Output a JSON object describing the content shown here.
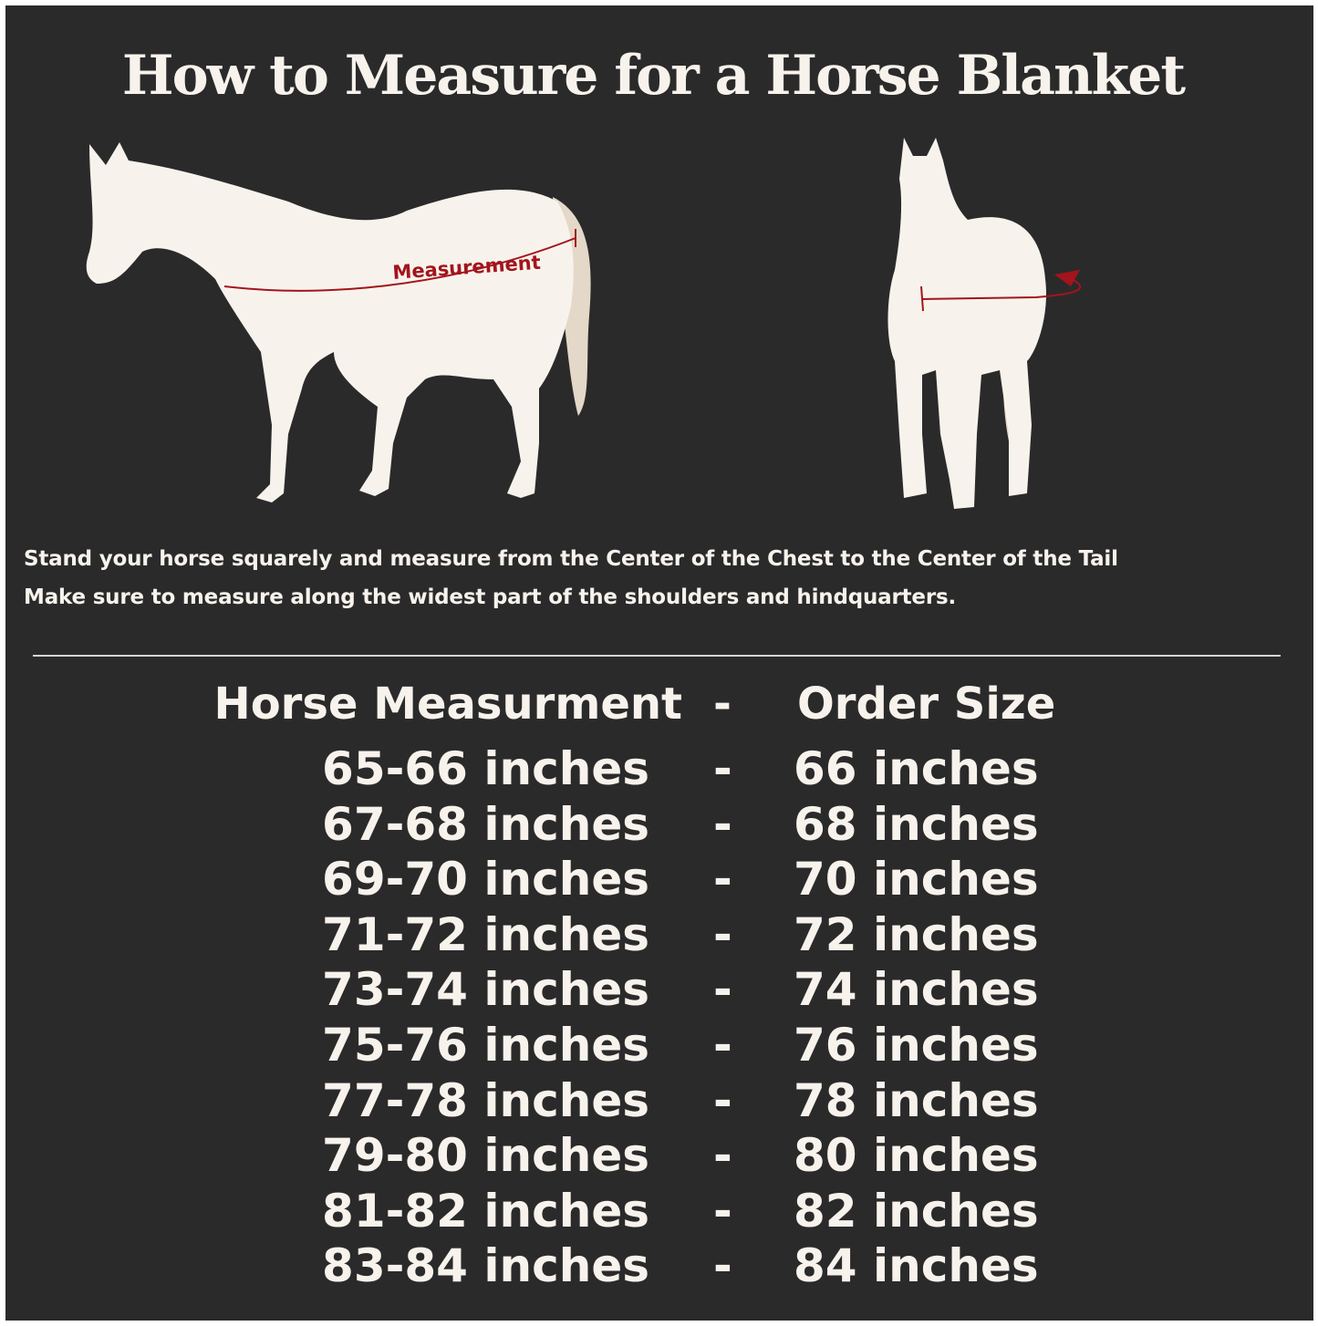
{
  "title": "How to Measure for a Horse Blanket",
  "diagram": {
    "side_label": "Measurement",
    "accent_color": "#a3141c",
    "horse_color": "#f7f3ec",
    "background_color": "#2b2a2b"
  },
  "instructions": [
    "Stand your horse squarely and measure from the Center of the Chest to the Center of the Tail",
    "Make sure to measure along the widest part of the shoulders and hindquarters."
  ],
  "table": {
    "header": {
      "measurement": "Horse Measurment",
      "separator": "-",
      "size": "Order Size"
    },
    "rows": [
      {
        "measurement": "65-66 inches",
        "separator": "-",
        "size": "66 inches"
      },
      {
        "measurement": "67-68 inches",
        "separator": "-",
        "size": "68 inches"
      },
      {
        "measurement": "69-70 inches",
        "separator": "-",
        "size": "70 inches"
      },
      {
        "measurement": "71-72 inches",
        "separator": "-",
        "size": "72 inches"
      },
      {
        "measurement": "73-74 inches",
        "separator": "-",
        "size": "74 inches"
      },
      {
        "measurement": "75-76 inches",
        "separator": "-",
        "size": "76 inches"
      },
      {
        "measurement": "77-78 inches",
        "separator": "-",
        "size": "78 inches"
      },
      {
        "measurement": "79-80 inches",
        "separator": "-",
        "size": "80 inches"
      },
      {
        "measurement": "81-82 inches",
        "separator": "-",
        "size": "82 inches"
      },
      {
        "measurement": "83-84 inches",
        "separator": "-",
        "size": "84 inches"
      }
    ]
  }
}
